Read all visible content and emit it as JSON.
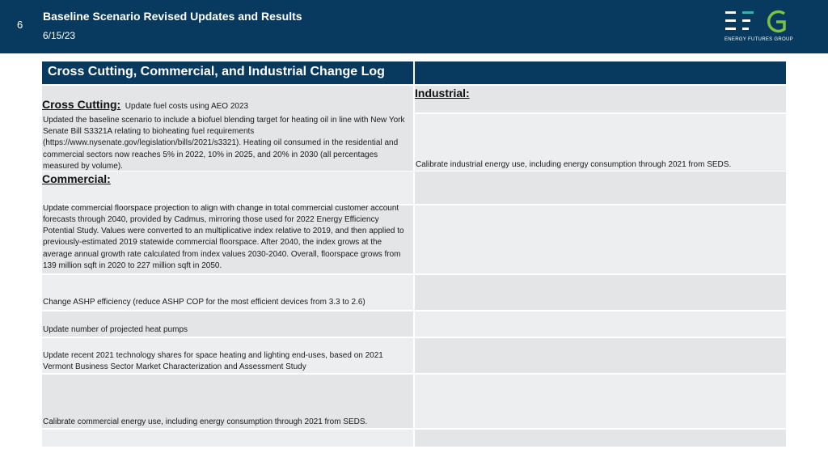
{
  "slide": {
    "number": "6",
    "title": "Baseline Scenario Revised Updates and Results",
    "date": "6/15/23"
  },
  "logo": {
    "caption": "ENERGY FUTURES GROUP",
    "colors": {
      "bars": "#ffffff",
      "accent": "#2fb5a3",
      "g": "#7cc242"
    }
  },
  "table": {
    "title": "Cross Cutting, Commercial, and Industrial Change Log",
    "cross_cutting": {
      "heading": "Cross Cutting:",
      "inline_item": "Update fuel costs using AEO 2023",
      "item": "Updated the baseline scenario to include a biofuel blending target for heating oil in line with New York Senate Bill S3321A relating to bioheating fuel requirements (https://www.nysenate.gov/legislation/bills/2021/s3321). Heating oil consumed in the residential and commercial sectors now reaches 5% in 2022, 10% in 2025, and 20% in 2030 (all percentages measured by volume)."
    },
    "industrial": {
      "heading": "Industrial:",
      "items": [
        "Calibrate industrial energy use, including energy consumption through 2021 from SEDS."
      ]
    },
    "commercial": {
      "heading": "Commercial:",
      "items": [
        "Update commercial floorspace projection to align with change in total commercial customer account forecasts through 2040, provided by Cadmus, mirroring those used for 2022 Energy Efficiency Potential Study. Values were converted to an multiplicative index relative to 2019, and then applied to previously-estimated 2019 statewide commercial floorspace. After 2040, the index grows at the average annual growth rate calculated from index values 2030-2040. Overall, floorspace grows from 139 million sqft in 2020 to 227 million sqft in 2050.",
        "Change ASHP efficiency (reduce ASHP COP for the most efficient devices from 3.3 to 2.6)",
        "Update number of projected heat pumps",
        "Update recent 2021 technology shares for space heating and lighting end-uses, based on 2021 Vermont Business Sector Market Characterization and Assessment Study",
        "Calibrate commercial energy use, including energy consumption through 2021 from SEDS."
      ]
    },
    "colors": {
      "header": "#073a5e",
      "shade": "#e3e5e7",
      "pale": "#eceef0"
    }
  }
}
